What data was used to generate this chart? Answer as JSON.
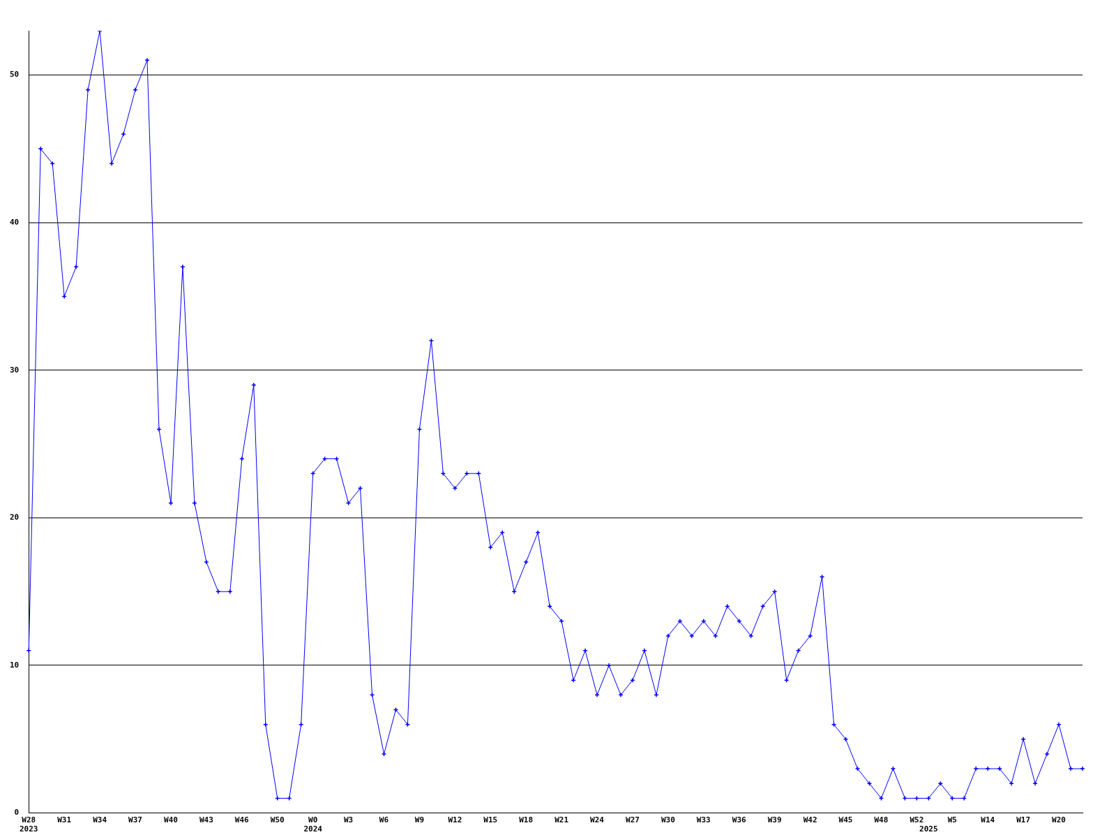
{
  "chart_data": {
    "type": "line",
    "categories": [
      "W28\n2023",
      null,
      null,
      "W31",
      null,
      null,
      "W34",
      null,
      null,
      "W37",
      null,
      null,
      "W40",
      null,
      null,
      "W43",
      null,
      null,
      "W46",
      null,
      null,
      "W50",
      null,
      null,
      "W0\n2024",
      null,
      null,
      "W3",
      null,
      null,
      "W6",
      null,
      null,
      "W9",
      null,
      null,
      "W12",
      null,
      null,
      "W15",
      null,
      null,
      "W18",
      null,
      null,
      "W21",
      null,
      null,
      "W24",
      null,
      null,
      "W27",
      null,
      null,
      "W30",
      null,
      null,
      "W33",
      null,
      null,
      "W36",
      null,
      null,
      "W39",
      null,
      null,
      "W42",
      null,
      null,
      "W45",
      null,
      null,
      "W48",
      null,
      null,
      "W52",
      "\n2025",
      null,
      "W5",
      null,
      null,
      "W14",
      null,
      null,
      "W17",
      null,
      null,
      "W20",
      null,
      null
    ],
    "series": [
      {
        "color": "#0000ff",
        "values": [
          11,
          45,
          44,
          35,
          37,
          49,
          53,
          44,
          46,
          49,
          51,
          26,
          21,
          37,
          21,
          17,
          15,
          15,
          24,
          29,
          6,
          1,
          1,
          6,
          23,
          24,
          24,
          21,
          22,
          8,
          4,
          7,
          6,
          26,
          32,
          23,
          22,
          23,
          23,
          18,
          19,
          15,
          17,
          19,
          14,
          13,
          9,
          11,
          8,
          10,
          8,
          9,
          11,
          8,
          12,
          13,
          12,
          13,
          12,
          14,
          13,
          12,
          14,
          15,
          9,
          11,
          12,
          16,
          6,
          5,
          3,
          2,
          1,
          3,
          1,
          1,
          1,
          2,
          1,
          1,
          3,
          3,
          3,
          2,
          5,
          2,
          4,
          6,
          3,
          3
        ]
      }
    ],
    "ylim": [
      0,
      53
    ],
    "yticks": [
      0,
      10,
      20,
      30,
      40,
      50
    ],
    "grid": "y",
    "marker": "cross",
    "line_style": "solid",
    "legend": false
  }
}
